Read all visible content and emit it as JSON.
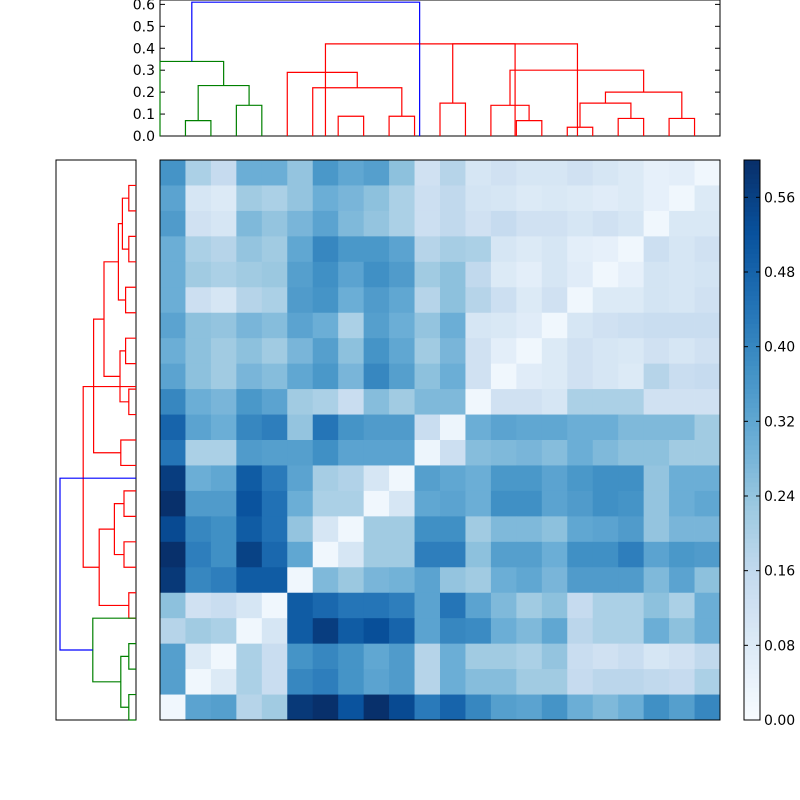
{
  "chart_data": [
    {
      "type": "dendrogram",
      "orientation": "top",
      "ylim": [
        0,
        0.62
      ],
      "yticks": [
        "0.0",
        "0.1",
        "0.2",
        "0.3",
        "0.4",
        "0.5",
        "0.6"
      ],
      "leaf_count": 22,
      "link_colors": [
        "#008000",
        "#ff0000",
        "#0000ff"
      ],
      "links": [
        {
          "a": 0.5,
          "b": 1.5,
          "h": 0.07,
          "c": "g"
        },
        {
          "a": 2.5,
          "b": 3.5,
          "h": 0.14,
          "c": "g"
        },
        {
          "a": 1.0,
          "b": 3.0,
          "h": 0.23,
          "c": "g"
        },
        {
          "a": -0.5,
          "b": 2.0,
          "h": 0.34,
          "c": "g"
        },
        {
          "a": 6.5,
          "b": 7.5,
          "h": 0.09,
          "c": "r"
        },
        {
          "a": 8.5,
          "b": 9.5,
          "h": 0.09,
          "c": "r"
        },
        {
          "a": 5.5,
          "b": 9.0,
          "h": 0.22,
          "c": "r"
        },
        {
          "a": 4.5,
          "b": 7.25,
          "h": 0.29,
          "c": "r"
        },
        {
          "a": 10.5,
          "b": 11.5,
          "h": 0.15,
          "c": "r"
        },
        {
          "a": 13.5,
          "b": 14.5,
          "h": 0.07,
          "c": "r"
        },
        {
          "a": 12.5,
          "b": 14.0,
          "h": 0.14,
          "c": "r"
        },
        {
          "a": 15.5,
          "b": 16.5,
          "h": 0.04,
          "c": "r"
        },
        {
          "a": 17.5,
          "b": 18.5,
          "h": 0.08,
          "c": "r"
        },
        {
          "a": 16.0,
          "b": 18.0,
          "h": 0.15,
          "c": "r"
        },
        {
          "a": 19.5,
          "b": 20.5,
          "h": 0.08,
          "c": "r"
        },
        {
          "a": 17.0,
          "b": 20.0,
          "h": 0.2,
          "c": "r"
        },
        {
          "a": 13.25,
          "b": 18.5,
          "h": 0.3,
          "c": "r"
        },
        {
          "a": 11.0,
          "b": 15.9,
          "h": 0.42,
          "c": "r"
        },
        {
          "a": 6.0,
          "b": 13.45,
          "h": 0.42,
          "c": "r"
        },
        {
          "a": 0.75,
          "b": 9.7,
          "h": 0.61,
          "c": "b"
        }
      ]
    },
    {
      "type": "dendrogram",
      "orientation": "left",
      "leaf_count": 22,
      "links": [
        {
          "a": 0.5,
          "b": 1.5,
          "h": 0.09,
          "c": "r"
        },
        {
          "a": 2.5,
          "b": 3.5,
          "h": 0.09,
          "c": "r"
        },
        {
          "a": 1.0,
          "b": 3.0,
          "h": 0.17,
          "c": "r"
        },
        {
          "a": 4.5,
          "b": 5.5,
          "h": 0.13,
          "c": "r"
        },
        {
          "a": 2.0,
          "b": 5.0,
          "h": 0.22,
          "c": "r"
        },
        {
          "a": 6.5,
          "b": 7.5,
          "h": 0.13,
          "c": "r"
        },
        {
          "a": 8.5,
          "b": 9.5,
          "h": 0.09,
          "c": "r"
        },
        {
          "a": 7.0,
          "b": 9.0,
          "h": 0.2,
          "c": "r"
        },
        {
          "a": 3.5,
          "b": 8.0,
          "h": 0.4,
          "c": "r"
        },
        {
          "a": 10.5,
          "b": 11.5,
          "h": 0.19,
          "c": "r"
        },
        {
          "a": 5.75,
          "b": 11.0,
          "h": 0.53,
          "c": "r"
        },
        {
          "a": 12.5,
          "b": 13.5,
          "h": 0.15,
          "c": "r"
        },
        {
          "a": 14.5,
          "b": 15.5,
          "h": 0.15,
          "c": "r"
        },
        {
          "a": 13.0,
          "b": 15.0,
          "h": 0.27,
          "c": "r"
        },
        {
          "a": 16.5,
          "b": 17.5,
          "h": 0.09,
          "c": "r"
        },
        {
          "a": 14.0,
          "b": 17.0,
          "h": 0.46,
          "c": "r"
        },
        {
          "a": 8.4,
          "b": 15.5,
          "h": 0.66,
          "c": "r"
        },
        {
          "a": 18.5,
          "b": 19.5,
          "h": 0.09,
          "c": "g"
        },
        {
          "a": 20.5,
          "b": 21.5,
          "h": 0.09,
          "c": "g"
        },
        {
          "a": 19.0,
          "b": 21.0,
          "h": 0.19,
          "c": "g"
        },
        {
          "a": 17.5,
          "b": 20.0,
          "h": 0.54,
          "c": "g"
        },
        {
          "a": 12.0,
          "b": 18.75,
          "h": 0.95,
          "c": "b"
        }
      ],
      "xlim": [
        0,
        1.0
      ]
    },
    {
      "type": "heatmap",
      "rows": 22,
      "cols": 22,
      "vmin": 0.0,
      "vmax": 0.6,
      "colormap": "Blues",
      "values": [
        [
          0.37,
          0.2,
          0.15,
          0.3,
          0.3,
          0.24,
          0.36,
          0.32,
          0.34,
          0.25,
          0.12,
          0.18,
          0.1,
          0.12,
          0.1,
          0.1,
          0.12,
          0.1,
          0.08,
          0.05,
          0.06,
          0.02
        ],
        [
          0.33,
          0.1,
          0.08,
          0.22,
          0.2,
          0.24,
          0.3,
          0.28,
          0.25,
          0.2,
          0.13,
          0.16,
          0.11,
          0.1,
          0.08,
          0.09,
          0.08,
          0.07,
          0.08,
          0.05,
          0.02,
          0.08
        ],
        [
          0.35,
          0.12,
          0.1,
          0.27,
          0.24,
          0.28,
          0.33,
          0.27,
          0.24,
          0.2,
          0.13,
          0.16,
          0.12,
          0.15,
          0.12,
          0.12,
          0.1,
          0.12,
          0.1,
          0.02,
          0.09,
          0.09
        ],
        [
          0.3,
          0.2,
          0.18,
          0.24,
          0.22,
          0.32,
          0.4,
          0.36,
          0.36,
          0.33,
          0.18,
          0.21,
          0.2,
          0.1,
          0.08,
          0.1,
          0.06,
          0.05,
          0.02,
          0.13,
          0.1,
          0.12
        ],
        [
          0.3,
          0.22,
          0.2,
          0.22,
          0.23,
          0.34,
          0.38,
          0.33,
          0.38,
          0.35,
          0.22,
          0.25,
          0.16,
          0.08,
          0.06,
          0.1,
          0.07,
          0.02,
          0.05,
          0.11,
          0.1,
          0.11
        ],
        [
          0.3,
          0.13,
          0.1,
          0.18,
          0.2,
          0.35,
          0.37,
          0.3,
          0.35,
          0.32,
          0.18,
          0.25,
          0.18,
          0.13,
          0.08,
          0.12,
          0.02,
          0.08,
          0.08,
          0.11,
          0.1,
          0.12
        ],
        [
          0.33,
          0.25,
          0.24,
          0.28,
          0.26,
          0.33,
          0.3,
          0.2,
          0.34,
          0.3,
          0.24,
          0.3,
          0.1,
          0.09,
          0.07,
          0.02,
          0.1,
          0.12,
          0.13,
          0.14,
          0.14,
          0.14
        ],
        [
          0.3,
          0.25,
          0.22,
          0.25,
          0.22,
          0.28,
          0.34,
          0.25,
          0.37,
          0.32,
          0.22,
          0.28,
          0.12,
          0.06,
          0.02,
          0.08,
          0.12,
          0.1,
          0.09,
          0.12,
          0.1,
          0.12
        ],
        [
          0.33,
          0.25,
          0.22,
          0.28,
          0.26,
          0.32,
          0.36,
          0.28,
          0.4,
          0.34,
          0.25,
          0.3,
          0.12,
          0.02,
          0.07,
          0.08,
          0.12,
          0.1,
          0.08,
          0.18,
          0.14,
          0.15
        ],
        [
          0.4,
          0.3,
          0.28,
          0.36,
          0.33,
          0.22,
          0.2,
          0.14,
          0.26,
          0.22,
          0.27,
          0.27,
          0.02,
          0.12,
          0.12,
          0.1,
          0.2,
          0.2,
          0.2,
          0.12,
          0.12,
          0.12
        ],
        [
          0.48,
          0.33,
          0.3,
          0.4,
          0.42,
          0.24,
          0.44,
          0.37,
          0.35,
          0.35,
          0.14,
          0.03,
          0.3,
          0.33,
          0.32,
          0.32,
          0.3,
          0.3,
          0.27,
          0.27,
          0.27,
          0.22
        ],
        [
          0.44,
          0.2,
          0.2,
          0.35,
          0.34,
          0.34,
          0.38,
          0.33,
          0.33,
          0.33,
          0.03,
          0.13,
          0.26,
          0.27,
          0.28,
          0.26,
          0.3,
          0.27,
          0.25,
          0.25,
          0.22,
          0.22
        ],
        [
          0.57,
          0.3,
          0.32,
          0.5,
          0.43,
          0.33,
          0.21,
          0.19,
          0.1,
          0.02,
          0.34,
          0.32,
          0.3,
          0.36,
          0.36,
          0.33,
          0.36,
          0.38,
          0.38,
          0.24,
          0.3,
          0.3
        ],
        [
          0.6,
          0.35,
          0.35,
          0.52,
          0.45,
          0.3,
          0.2,
          0.2,
          0.02,
          0.1,
          0.32,
          0.33,
          0.3,
          0.38,
          0.38,
          0.33,
          0.35,
          0.38,
          0.37,
          0.24,
          0.3,
          0.32
        ],
        [
          0.54,
          0.4,
          0.38,
          0.5,
          0.45,
          0.24,
          0.1,
          0.02,
          0.22,
          0.22,
          0.38,
          0.38,
          0.22,
          0.27,
          0.27,
          0.25,
          0.32,
          0.33,
          0.35,
          0.24,
          0.28,
          0.28
        ],
        [
          0.6,
          0.42,
          0.38,
          0.56,
          0.47,
          0.32,
          0.02,
          0.1,
          0.22,
          0.22,
          0.42,
          0.42,
          0.25,
          0.34,
          0.34,
          0.3,
          0.38,
          0.38,
          0.42,
          0.33,
          0.36,
          0.35
        ],
        [
          0.58,
          0.4,
          0.42,
          0.5,
          0.5,
          0.02,
          0.27,
          0.23,
          0.28,
          0.29,
          0.33,
          0.24,
          0.22,
          0.3,
          0.32,
          0.28,
          0.35,
          0.35,
          0.35,
          0.27,
          0.33,
          0.25
        ],
        [
          0.25,
          0.12,
          0.14,
          0.1,
          0.02,
          0.5,
          0.47,
          0.44,
          0.44,
          0.42,
          0.33,
          0.44,
          0.33,
          0.27,
          0.22,
          0.25,
          0.15,
          0.2,
          0.2,
          0.25,
          0.2,
          0.3
        ],
        [
          0.18,
          0.22,
          0.2,
          0.02,
          0.1,
          0.5,
          0.57,
          0.5,
          0.53,
          0.48,
          0.33,
          0.4,
          0.39,
          0.3,
          0.27,
          0.32,
          0.17,
          0.2,
          0.2,
          0.3,
          0.25,
          0.3
        ],
        [
          0.34,
          0.08,
          0.02,
          0.2,
          0.14,
          0.37,
          0.4,
          0.37,
          0.32,
          0.35,
          0.18,
          0.3,
          0.22,
          0.22,
          0.2,
          0.24,
          0.14,
          0.12,
          0.14,
          0.1,
          0.12,
          0.16
        ],
        [
          0.34,
          0.02,
          0.08,
          0.2,
          0.14,
          0.4,
          0.42,
          0.37,
          0.33,
          0.35,
          0.18,
          0.3,
          0.26,
          0.26,
          0.22,
          0.22,
          0.15,
          0.17,
          0.17,
          0.16,
          0.15,
          0.2
        ],
        [
          0.02,
          0.33,
          0.34,
          0.18,
          0.22,
          0.58,
          0.6,
          0.52,
          0.6,
          0.54,
          0.43,
          0.48,
          0.4,
          0.34,
          0.33,
          0.37,
          0.3,
          0.27,
          0.3,
          0.38,
          0.34,
          0.4
        ]
      ]
    },
    {
      "type": "colorbar",
      "vmin": 0.0,
      "vmax": 0.6,
      "ticks": [
        {
          "v": 0.0,
          "label": "0.00"
        },
        {
          "v": 0.08,
          "label": "0.08"
        },
        {
          "v": 0.16,
          "label": "0.16"
        },
        {
          "v": 0.24,
          "label": "0.24"
        },
        {
          "v": 0.32,
          "label": "0.32"
        },
        {
          "v": 0.4,
          "label": "0.40"
        },
        {
          "v": 0.48,
          "label": "0.48"
        },
        {
          "v": 0.56,
          "label": "0.56"
        }
      ],
      "colormap": "Blues"
    }
  ]
}
